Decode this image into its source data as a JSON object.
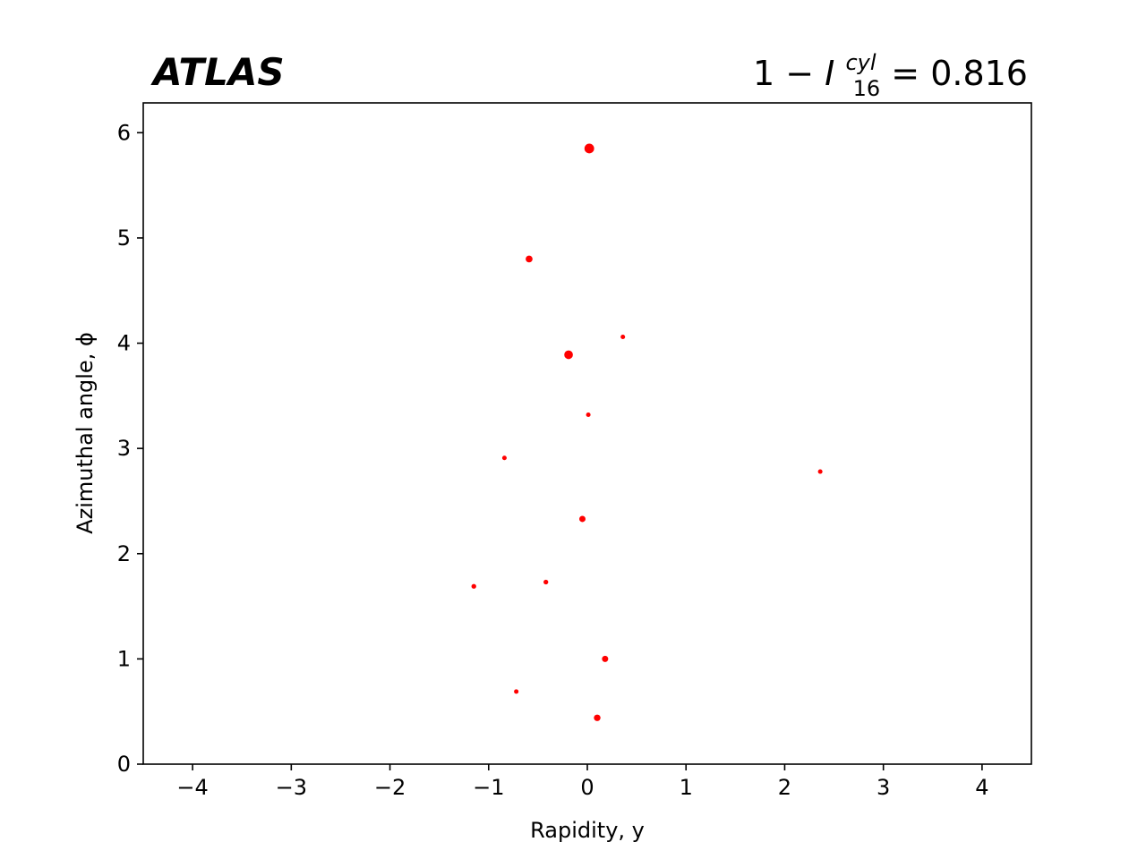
{
  "header": {
    "brand": "ATLAS",
    "metric_prefix": "1 − ",
    "metric_symbol": "I",
    "metric_superscript": "cyl",
    "metric_subscript": "16",
    "metric_value": " = 0.816"
  },
  "chart_data": {
    "type": "scatter",
    "xlabel": "Rapidity, y",
    "ylabel": "Azimuthal angle, ϕ",
    "xlim": [
      -4.5,
      4.5
    ],
    "ylim": [
      0,
      6.2832
    ],
    "x_ticks": [
      -4,
      -3,
      -2,
      -1,
      0,
      1,
      2,
      3,
      4
    ],
    "x_tick_labels": [
      "−4",
      "−3",
      "−2",
      "−1",
      "0",
      "1",
      "2",
      "3",
      "4"
    ],
    "y_ticks": [
      0,
      1,
      2,
      3,
      4,
      5,
      6
    ],
    "y_tick_labels": [
      "0",
      "1",
      "2",
      "3",
      "4",
      "5",
      "6"
    ],
    "grid": false,
    "marker_color": "#ff0000",
    "size_encodes": "relative particle weight (larger marker = larger weight)",
    "points": [
      {
        "x": 0.02,
        "y": 5.85,
        "w": 1.0
      },
      {
        "x": -0.59,
        "y": 4.8,
        "w": 0.4
      },
      {
        "x": 0.36,
        "y": 4.06,
        "w": 0.1
      },
      {
        "x": -0.19,
        "y": 3.89,
        "w": 0.75
      },
      {
        "x": 0.01,
        "y": 3.32,
        "w": 0.1
      },
      {
        "x": -0.84,
        "y": 2.91,
        "w": 0.1
      },
      {
        "x": 2.36,
        "y": 2.78,
        "w": 0.1
      },
      {
        "x": -0.05,
        "y": 2.33,
        "w": 0.3
      },
      {
        "x": -1.15,
        "y": 1.69,
        "w": 0.12
      },
      {
        "x": -0.42,
        "y": 1.73,
        "w": 0.12
      },
      {
        "x": 0.18,
        "y": 1.0,
        "w": 0.3
      },
      {
        "x": -0.72,
        "y": 0.69,
        "w": 0.1
      },
      {
        "x": 0.1,
        "y": 0.44,
        "w": 0.35
      }
    ]
  }
}
